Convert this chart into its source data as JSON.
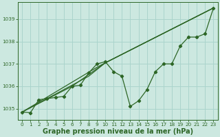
{
  "xlabel": "Graphe pression niveau de la mer (hPa)",
  "xlim": [
    -0.5,
    23.5
  ],
  "ylim": [
    1034.5,
    1039.75
  ],
  "yticks": [
    1035,
    1036,
    1037,
    1038,
    1039
  ],
  "xticks": [
    0,
    1,
    2,
    3,
    4,
    5,
    6,
    7,
    8,
    9,
    10,
    11,
    12,
    13,
    14,
    15,
    16,
    17,
    18,
    19,
    20,
    21,
    22,
    23
  ],
  "background_color": "#cce8e0",
  "grid_color": "#aad4cc",
  "line_color": "#2d6626",
  "series1_x": [
    0,
    1,
    2,
    3,
    4,
    5,
    6,
    7,
    8,
    9,
    10,
    11,
    12,
    13,
    14,
    15,
    16,
    17,
    18,
    19,
    20,
    21,
    22,
    23
  ],
  "series1_y": [
    1034.85,
    1034.82,
    1035.4,
    1035.45,
    1035.5,
    1035.55,
    1036.0,
    1036.05,
    1036.6,
    1037.0,
    1037.1,
    1036.65,
    1036.45,
    1035.1,
    1035.35,
    1035.85,
    1036.65,
    1037.0,
    1037.0,
    1037.8,
    1038.2,
    1038.2,
    1038.35,
    1039.5
  ],
  "trend1_x": [
    0,
    8,
    10,
    23
  ],
  "trend1_y": [
    1034.85,
    1036.45,
    1037.05,
    1039.5
  ],
  "trend2_x": [
    0,
    9,
    10,
    23
  ],
  "trend2_y": [
    1034.85,
    1036.85,
    1037.05,
    1039.5
  ],
  "trend3_x": [
    0,
    6,
    10,
    23
  ],
  "trend3_y": [
    1034.85,
    1036.0,
    1037.05,
    1039.5
  ],
  "marker": "D",
  "markersize": 2.2,
  "linewidth": 0.9,
  "tick_fontsize": 5.2,
  "xlabel_fontsize": 7.0
}
